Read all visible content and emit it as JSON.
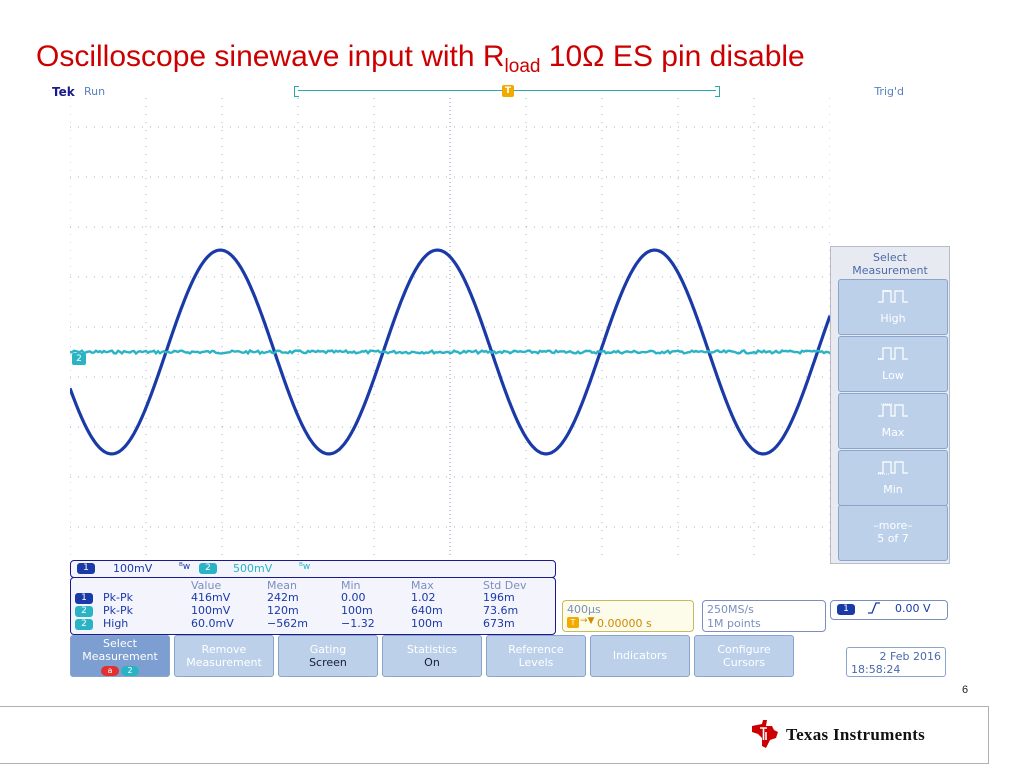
{
  "slide": {
    "title_prefix": "Oscilloscope sinewave input with R",
    "title_sub": "load",
    "title_suffix": " 10Ω ES pin disable",
    "page_number": "6",
    "logo_text": "Texas Instruments"
  },
  "scope": {
    "brand": "Tek",
    "state": "Run",
    "trigger_state": "Trig'd",
    "trigger_marker": "T",
    "ch2_marker": "2",
    "colors": {
      "ch1": "#1a3aa8",
      "ch2": "#2ab3c4",
      "grid": "#7b8fbf",
      "trigger": "#f2a900"
    },
    "channels": [
      {
        "id": "1",
        "scale": "100mV",
        "bw_icon": "ᴮw"
      },
      {
        "id": "2",
        "scale": "500mV",
        "bw_icon": "ᴮw"
      }
    ],
    "waveform": {
      "cycles_visible": 3.5,
      "ch1_amplitude_div": 2.08,
      "ch2_offset_div": 0
    },
    "measurements": {
      "headers": [
        "Value",
        "Mean",
        "Min",
        "Max",
        "Std Dev"
      ],
      "rows": [
        {
          "channel": "1",
          "type": "Pk-Pk",
          "value": "416mV",
          "mean": "242m",
          "min": "0.00",
          "max": "1.02",
          "std": "196m"
        },
        {
          "channel": "2",
          "type": "Pk-Pk",
          "value": "100mV",
          "mean": "120m",
          "min": "100m",
          "max": "640m",
          "std": "73.6m"
        },
        {
          "channel": "2",
          "type": "High",
          "value": "60.0mV",
          "mean": "−562m",
          "min": "−1.32",
          "max": "100m",
          "std": "673m"
        }
      ]
    },
    "timebase": {
      "scale": "400µs",
      "trigger_marker": "T",
      "arrow": "→▼",
      "position": "0.00000 s"
    },
    "sampling": {
      "rate": "250MS/s",
      "points": "1M points"
    },
    "trigger": {
      "channel": "1",
      "slope": "⎍",
      "level": "0.00 V"
    },
    "side_menu": {
      "title_line1": "Select",
      "title_line2": "Measurement",
      "items": [
        {
          "label": "High",
          "icon": "high-pulse-icon"
        },
        {
          "label": "Low",
          "icon": "low-pulse-icon"
        },
        {
          "label": "Max",
          "icon": "max-pulse-icon"
        },
        {
          "label": "Min",
          "icon": "min-pulse-icon"
        }
      ],
      "more_line1": "–more–",
      "more_line2": "5 of 7"
    },
    "bottom_menu": [
      {
        "title": "Select",
        "title2": "Measurement",
        "sub": ""
      },
      {
        "title": "Remove",
        "title2": "Measurement",
        "sub": ""
      },
      {
        "title": "Gating",
        "title2": "",
        "sub": "Screen"
      },
      {
        "title": "Statistics",
        "title2": "",
        "sub": "On"
      },
      {
        "title": "Reference",
        "title2": "Levels",
        "sub": ""
      },
      {
        "title": "Indicators",
        "title2": "",
        "sub": ""
      },
      {
        "title": "Configure",
        "title2": "Cursors",
        "sub": ""
      }
    ],
    "select_chips": [
      "a",
      "2"
    ],
    "date": "2 Feb  2016",
    "time": "18:58:24"
  }
}
